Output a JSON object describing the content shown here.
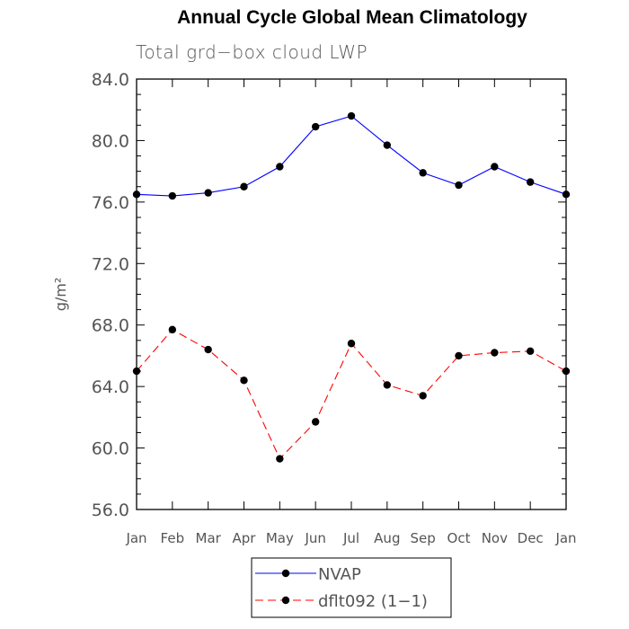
{
  "chart_data": {
    "type": "line",
    "title": "Annual Cycle Global Mean Climatology",
    "subtitle": "Total grd−box cloud LWP",
    "ylabel": "g/m²",
    "xlabel": "",
    "categories": [
      "Jan",
      "Feb",
      "Mar",
      "Apr",
      "May",
      "Jun",
      "Jul",
      "Aug",
      "Sep",
      "Oct",
      "Nov",
      "Dec",
      "Jan"
    ],
    "yticks": [
      "56.0",
      "60.0",
      "64.0",
      "68.0",
      "72.0",
      "76.0",
      "80.0",
      "84.0"
    ],
    "ylim": [
      56,
      84
    ],
    "grid": false,
    "legend_position": "bottom-center",
    "series": [
      {
        "name": "NVAP",
        "color": "#0000ff",
        "dash": "solid",
        "values": [
          76.5,
          76.4,
          76.6,
          77.0,
          78.3,
          80.9,
          81.6,
          79.7,
          77.9,
          77.1,
          78.3,
          77.3,
          76.5
        ]
      },
      {
        "name": "dflt092 (1−1)",
        "color": "#ff0000",
        "dash": "dashed",
        "values": [
          65.0,
          67.7,
          66.4,
          64.4,
          59.3,
          61.7,
          66.8,
          64.1,
          63.4,
          66.0,
          66.2,
          66.3,
          65.0
        ]
      }
    ]
  }
}
